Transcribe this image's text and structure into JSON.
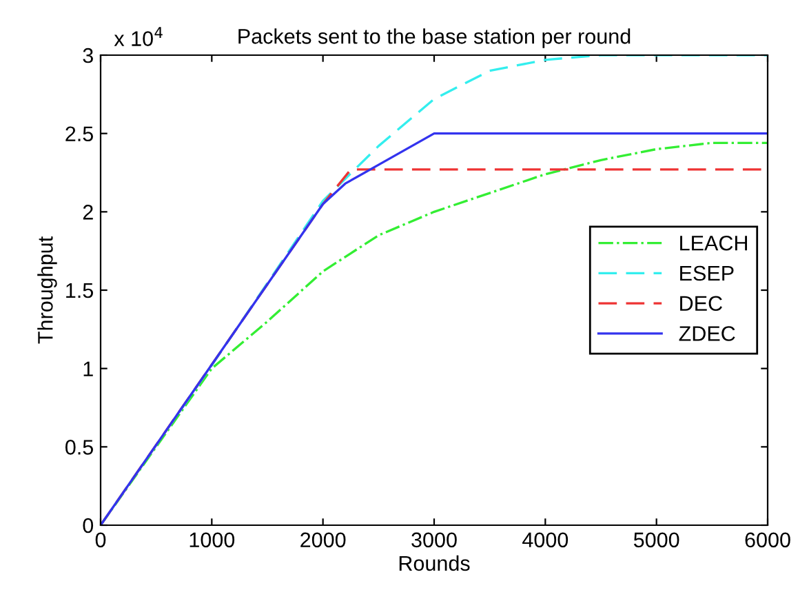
{
  "chart_data": {
    "type": "line",
    "title": "Packets sent to the base station per round",
    "xlabel": "Rounds",
    "ylabel": "Throughput",
    "annotations": [
      "x 10$^{4}$"
    ],
    "xlim": [
      0,
      6000
    ],
    "xticks": [
      0,
      1000,
      2000,
      3000,
      4000,
      5000,
      6000
    ],
    "ylim": [
      0,
      3
    ],
    "yticks": [
      0,
      0.5,
      1,
      1.5,
      2,
      2.5,
      3
    ],
    "grid": false,
    "legend": "right",
    "series": [
      {
        "name": "LEACH",
        "color": "#33ee33",
        "line_style": "dashdot",
        "x": [
          0,
          1000,
          1500,
          2000,
          2500,
          3000,
          3500,
          4000,
          4500,
          5000,
          5500,
          6000
        ],
        "values": [
          0,
          1.0,
          1.3,
          1.62,
          1.85,
          2.0,
          2.12,
          2.24,
          2.33,
          2.4,
          2.44,
          2.44
        ]
      },
      {
        "name": "ESEP",
        "color": "#33eeee",
        "line_style": "dashed",
        "x": [
          0,
          1000,
          2000,
          2500,
          3000,
          3500,
          4000,
          4500,
          5000,
          6000
        ],
        "values": [
          0,
          1.02,
          2.07,
          2.42,
          2.72,
          2.9,
          2.97,
          3.0,
          3.0,
          3.0
        ]
      },
      {
        "name": "DEC",
        "color": "#ee3333",
        "line_style": "dashed",
        "x": [
          0,
          2000,
          2250,
          6000
        ],
        "values": [
          0,
          2.05,
          2.27,
          2.27
        ]
      },
      {
        "name": "ZDEC",
        "color": "#3333ee",
        "line_style": "solid",
        "x": [
          0,
          2000,
          2200,
          2500,
          3000,
          6000
        ],
        "values": [
          0,
          2.05,
          2.18,
          2.3,
          2.5,
          2.5
        ]
      }
    ]
  }
}
